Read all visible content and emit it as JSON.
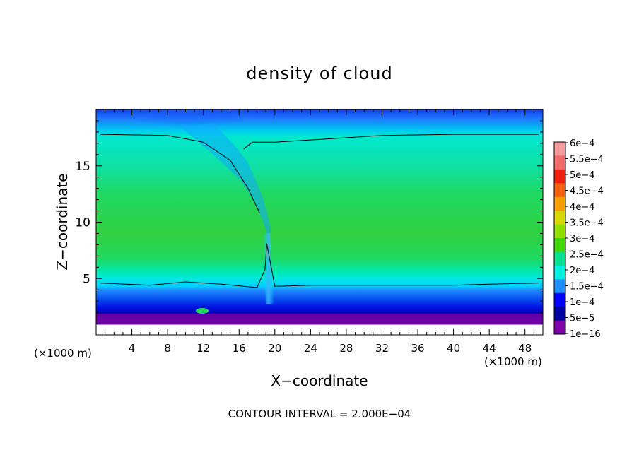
{
  "chart_data": {
    "type": "heatmap",
    "title": "density of cloud",
    "xlabel": "X−coordinate",
    "ylabel": "Z−coordinate",
    "x_unit_left": "(×1000 m)",
    "x_unit_right": "(×1000 m)",
    "xlim": [
      0,
      50
    ],
    "ylim": [
      0,
      20
    ],
    "xticks": [
      4,
      8,
      12,
      16,
      20,
      24,
      28,
      32,
      36,
      40,
      44,
      48
    ],
    "xtick_labels": [
      "4",
      "8",
      "12",
      "16",
      "20",
      "24",
      "28",
      "32",
      "36",
      "40",
      "44",
      "48"
    ],
    "yticks": [
      5,
      10,
      15
    ],
    "ytick_labels": [
      "5",
      "10",
      "15"
    ],
    "footer": "CONTOUR INTERVAL = 2.000E−04",
    "colorbar": {
      "labels": [
        "6e−4",
        "5.5e−4",
        "5e−4",
        "4.5e−4",
        "4e−4",
        "3.5e−4",
        "3e−4",
        "2.5e−4",
        "2e−4",
        "1.5e−4",
        "1e−4",
        "5e−5",
        "1e−16"
      ],
      "colors": [
        "#f59a9a",
        "#f26a6a",
        "#f02010",
        "#f56010",
        "#f5a000",
        "#d8d800",
        "#90e000",
        "#40d800",
        "#00e090",
        "#00f0e0",
        "#1e90ff",
        "#0000ff",
        "#0000a0",
        "#7b00a8"
      ]
    },
    "contour_levels": [
      0.0002
    ],
    "contours": [
      {
        "x": [
          0.5,
          8,
          12,
          15,
          17,
          18.3
        ],
        "z": [
          17.8,
          17.7,
          17.1,
          15.5,
          13,
          10.8
        ]
      },
      {
        "x": [
          16.5,
          17.5,
          20,
          24,
          32,
          40,
          49.5
        ],
        "z": [
          16.5,
          17.1,
          17.1,
          17.3,
          17.7,
          17.8,
          17.8
        ]
      },
      {
        "x": [
          0.5,
          6,
          10,
          14,
          18,
          18.9,
          19.1,
          20,
          24,
          30,
          40,
          44,
          49.5
        ],
        "z": [
          4.6,
          4.4,
          4.7,
          4.5,
          4.2,
          5.8,
          8.1,
          4.3,
          4.4,
          4.4,
          4.4,
          4.5,
          4.6
        ]
      }
    ]
  }
}
